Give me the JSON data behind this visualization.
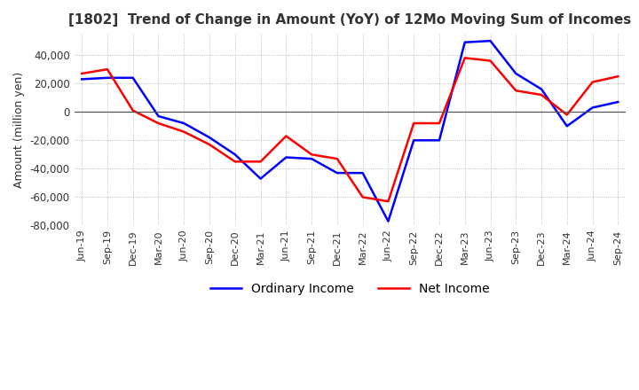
{
  "title": "[1802]  Trend of Change in Amount (YoY) of 12Mo Moving Sum of Incomes",
  "ylabel": "Amount (million yen)",
  "ylim": [
    -80000,
    55000
  ],
  "yticks": [
    -80000,
    -60000,
    -40000,
    -20000,
    0,
    20000,
    40000
  ],
  "x_labels": [
    "Jun-19",
    "Sep-19",
    "Dec-19",
    "Mar-20",
    "Jun-20",
    "Sep-20",
    "Dec-20",
    "Mar-21",
    "Jun-21",
    "Sep-21",
    "Dec-21",
    "Mar-22",
    "Jun-22",
    "Sep-22",
    "Dec-22",
    "Mar-23",
    "Jun-23",
    "Sep-23",
    "Dec-23",
    "Mar-24",
    "Jun-24",
    "Sep-24"
  ],
  "ordinary_income": [
    23000,
    24000,
    24000,
    -3000,
    -8000,
    -18000,
    -30000,
    -47000,
    -32000,
    -33000,
    -43000,
    -43000,
    -77000,
    -20000,
    -20000,
    49000,
    50000,
    27000,
    16000,
    -10000,
    3000,
    7000
  ],
  "net_income": [
    27000,
    30000,
    1000,
    -8000,
    -14000,
    -23000,
    -35000,
    -35000,
    -17000,
    -30000,
    -33000,
    -60000,
    -63000,
    -8000,
    -8000,
    38000,
    36000,
    15000,
    12000,
    -2000,
    21000,
    25000
  ],
  "ordinary_color": "#0000ff",
  "net_color": "#ff0000",
  "line_width": 1.8,
  "background_color": "#ffffff",
  "grid_color": "#aaaaaa",
  "title_color": "#333333",
  "legend_labels": [
    "Ordinary Income",
    "Net Income"
  ]
}
